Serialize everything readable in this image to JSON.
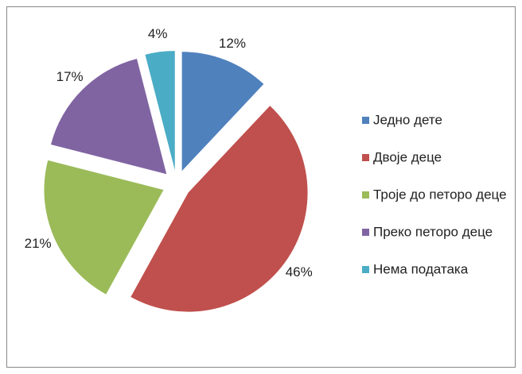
{
  "chart_data": {
    "type": "pie",
    "categories": [
      "Једно дете",
      "Двоје деце",
      "Троје до петоро деце",
      "Преко петоро деце",
      "Нема података"
    ],
    "values": [
      12,
      46,
      21,
      17,
      4
    ],
    "value_labels": [
      "12%",
      "46%",
      "21%",
      "17%",
      "4%"
    ],
    "colors": [
      "#4f81bd",
      "#c0504d",
      "#9bbb59",
      "#8064a2",
      "#4bacc6"
    ],
    "legend": "right"
  }
}
